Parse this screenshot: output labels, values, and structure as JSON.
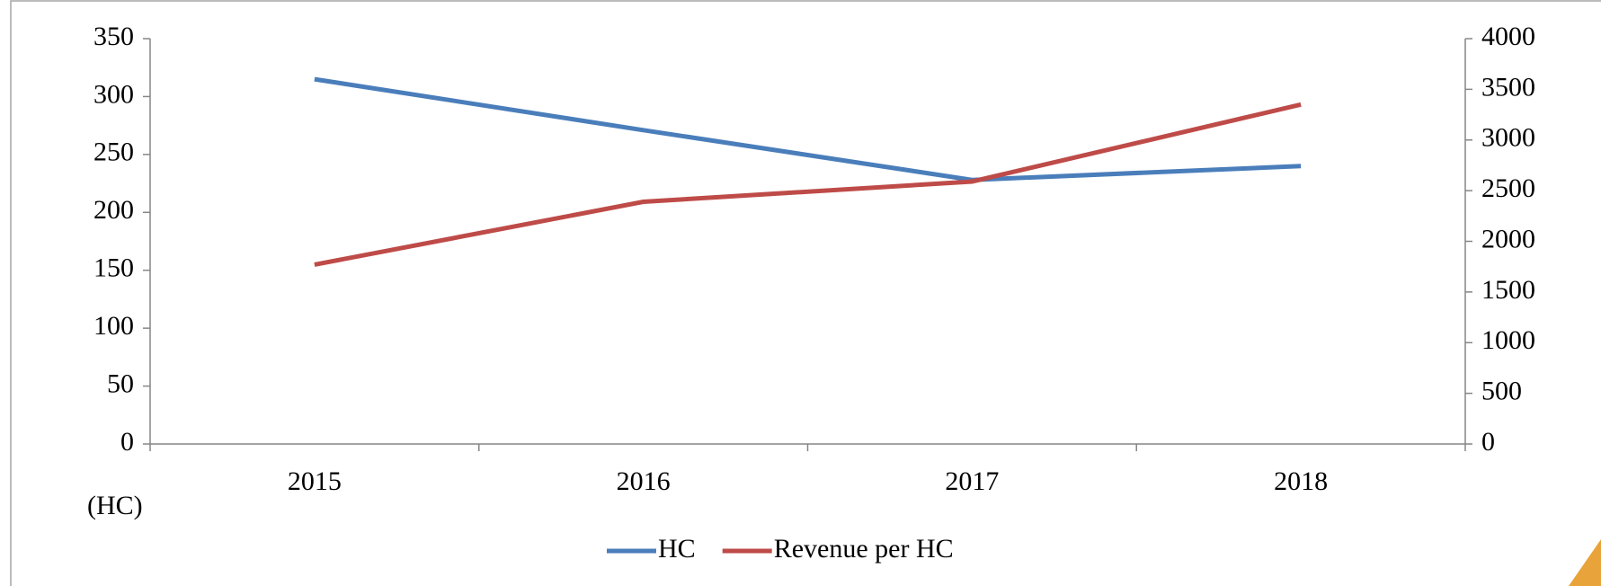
{
  "chart_data": {
    "type": "line",
    "categories": [
      "2015",
      "2016",
      "2017",
      "2018"
    ],
    "series": [
      {
        "name": "HC",
        "color": "#4a7ebb",
        "values": [
          315,
          271,
          228,
          240
        ]
      },
      {
        "name": "Revenue per HC",
        "color": "#be4b48",
        "values": [
          1770,
          2390,
          2590,
          3350
        ],
        "axis": "y2"
      }
    ],
    "ylim": [
      0,
      350
    ],
    "yticks": [
      0,
      50,
      100,
      150,
      200,
      250,
      300,
      350
    ],
    "y2lim": [
      0,
      4000
    ],
    "y2ticks": [
      0,
      500,
      1000,
      1500,
      2000,
      2500,
      3000,
      3500,
      4000
    ],
    "annotations": [
      "(HC)"
    ],
    "legend": "bottom"
  }
}
